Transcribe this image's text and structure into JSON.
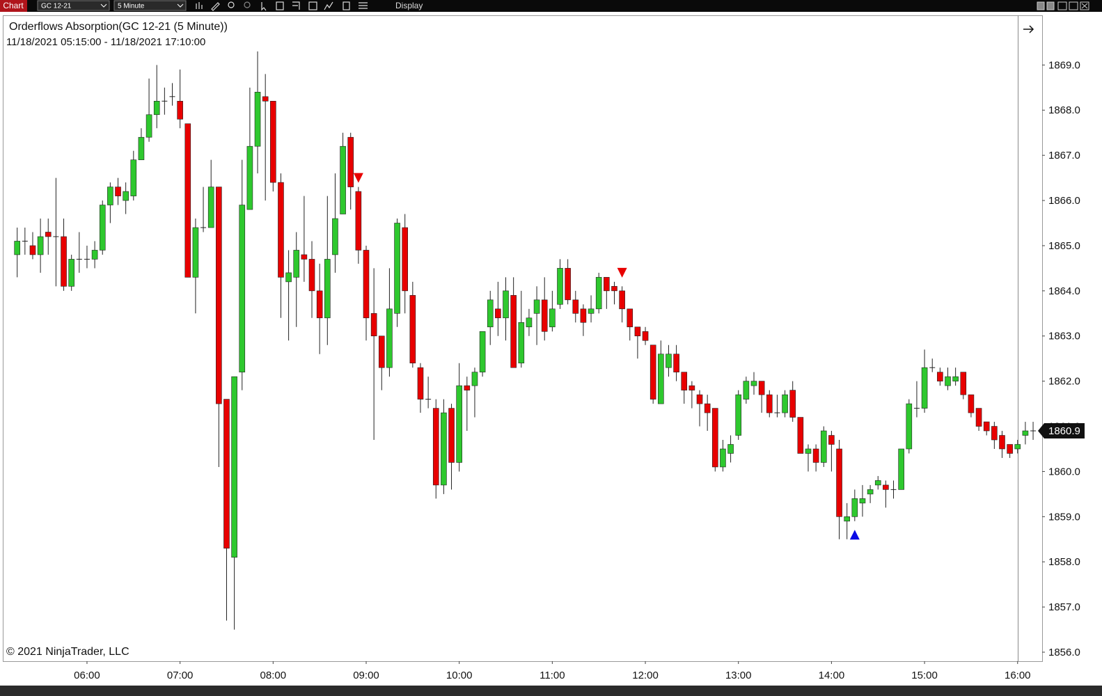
{
  "toolbar": {
    "tab": "Chart",
    "instrument": "GC 12-21",
    "interval": "5 Minute",
    "menu": "Display"
  },
  "chart_data": {
    "type": "candlestick",
    "title": "Orderflows Absorption(GC 12-21 (5 Minute))",
    "subtitle": "11/18/2021 05:15:00 - 11/18/2021 17:10:00",
    "copyright": "© 2021 NinjaTrader, LLC",
    "categories": [
      null,
      null,
      null,
      null,
      null,
      null,
      null,
      null,
      null,
      "06:00",
      null,
      null,
      null,
      null,
      null,
      null,
      null,
      null,
      null,
      null,
      null,
      "07:00",
      null,
      null,
      null,
      null,
      null,
      null,
      null,
      null,
      null,
      null,
      null,
      "08:00",
      null,
      null,
      null,
      null,
      null,
      null,
      null,
      null,
      null,
      null,
      null,
      "09:00",
      null,
      null,
      null,
      null,
      null,
      null,
      null,
      null,
      null,
      null,
      null,
      "10:00",
      null,
      null,
      null,
      null,
      null,
      null,
      null,
      null,
      null,
      null,
      null,
      "11:00",
      null,
      null,
      null,
      null,
      null,
      null,
      null,
      null,
      null,
      null,
      null,
      "12:00",
      null,
      null,
      null,
      null,
      null,
      null,
      null,
      null,
      null,
      null,
      null,
      "13:00",
      null,
      null,
      null,
      null,
      null,
      null,
      null,
      null,
      null,
      null,
      null,
      "14:00",
      null,
      null,
      null,
      null,
      null,
      null,
      null,
      null,
      null,
      null,
      null,
      "15:00",
      null,
      null,
      null,
      null,
      null,
      null,
      null,
      null,
      null,
      null,
      null,
      "16:00",
      null,
      null
    ],
    "open": [
      1864.8,
      1865.1,
      1865.0,
      1864.8,
      1865.3,
      1865.2,
      1865.2,
      1864.1,
      1864.7,
      1864.7,
      1864.7,
      1864.9,
      1865.9,
      1866.3,
      1866.0,
      1866.1,
      1866.9,
      1867.4,
      1867.9,
      1868.2,
      1868.3,
      1868.2,
      1867.7,
      1864.3,
      1865.4,
      1865.4,
      1866.3,
      1861.6,
      1858.1,
      1862.2,
      1865.8,
      1867.2,
      1868.3,
      1868.2,
      1866.4,
      1864.2,
      1864.3,
      1864.8,
      1864.7,
      1864.0,
      1863.4,
      1864.8,
      1865.7,
      1867.4,
      1866.2,
      1864.9,
      1863.5,
      1863.0,
      1862.3,
      1863.5,
      1865.4,
      1863.9,
      1862.3,
      1861.6,
      1861.4,
      1859.7,
      1861.4,
      1860.2,
      1861.9,
      1861.9,
      1862.2,
      1863.2,
      1863.6,
      1863.4,
      1863.9,
      1862.4,
      1863.2,
      1863.5,
      1863.8,
      1863.2,
      1863.7,
      1864.5,
      1863.8,
      1863.6,
      1863.5,
      1863.6,
      1864.3,
      1864.1,
      1864.0,
      1863.6,
      1863.2,
      1863.1,
      1862.8,
      1861.5,
      1862.3,
      1862.6,
      1862.2,
      1861.9,
      1861.7,
      1861.5,
      1861.4,
      1860.1,
      1860.4,
      1860.8,
      1861.6,
      1861.9,
      1862.0,
      1861.7,
      1861.3,
      1861.3,
      1861.8,
      1861.2,
      1860.4,
      1860.5,
      1860.2,
      1860.8,
      1860.5,
      1858.9,
      1859.0,
      1859.3,
      1859.5,
      1859.7,
      1859.7,
      1859.6,
      1859.6,
      1860.5,
      1861.4,
      1861.4,
      1862.3,
      1862.2,
      1861.9,
      1862.0,
      1862.2,
      1861.7,
      1861.4,
      1861.1,
      1861.0,
      1860.8,
      1860.6,
      1860.5,
      1860.8,
      1860.9
    ],
    "high": [
      1865.4,
      1865.4,
      1865.3,
      1865.6,
      1865.6,
      1866.5,
      1865.6,
      1864.8,
      1865.3,
      1865.0,
      1865.1,
      1866.0,
      1866.4,
      1866.5,
      1866.4,
      1867.1,
      1867.6,
      1868.7,
      1869.0,
      1868.5,
      1868.6,
      1868.9,
      1867.7,
      1865.6,
      1866.3,
      1866.9,
      1866.3,
      1861.6,
      1862.1,
      1866.9,
      1868.5,
      1869.3,
      1868.8,
      1868.2,
      1866.6,
      1864.9,
      1865.3,
      1866.1,
      1865.1,
      1864.6,
      1866.1,
      1866.6,
      1867.5,
      1867.5,
      1866.3,
      1865.0,
      1864.5,
      1863.0,
      1864.5,
      1865.6,
      1865.7,
      1864.2,
      1862.4,
      1862.1,
      1861.6,
      1861.6,
      1861.5,
      1862.4,
      1862.1,
      1862.3,
      1863.1,
      1864.0,
      1864.2,
      1864.3,
      1864.3,
      1864.0,
      1863.6,
      1864.1,
      1864.3,
      1864.0,
      1864.7,
      1864.7,
      1864.0,
      1863.7,
      1863.9,
      1864.4,
      1864.3,
      1864.2,
      1864.1,
      1863.6,
      1863.2,
      1863.2,
      1862.8,
      1862.9,
      1862.8,
      1862.8,
      1862.2,
      1862.0,
      1861.8,
      1861.7,
      1861.4,
      1860.7,
      1860.8,
      1861.8,
      1862.1,
      1862.2,
      1862.0,
      1861.8,
      1861.7,
      1861.8,
      1862.0,
      1861.2,
      1860.6,
      1860.6,
      1861.0,
      1860.9,
      1860.7,
      1859.3,
      1859.6,
      1859.7,
      1859.7,
      1859.9,
      1859.8,
      1859.8,
      1860.5,
      1861.6,
      1862.0,
      1862.7,
      1862.5,
      1862.3,
      1862.3,
      1862.3,
      1862.2,
      1861.7,
      1861.4,
      1861.1,
      1861.1,
      1860.9,
      1860.6,
      1860.7,
      1861.1,
      1861.1
    ],
    "low": [
      1864.3,
      1864.8,
      1864.7,
      1864.4,
      1864.8,
      1864.1,
      1864.0,
      1864.0,
      1864.4,
      1864.5,
      1864.5,
      1864.8,
      1865.5,
      1865.9,
      1865.7,
      1866.0,
      1866.9,
      1867.3,
      1867.6,
      1867.9,
      1868.1,
      1867.6,
      1864.3,
      1863.5,
      1865.3,
      1865.4,
      1860.1,
      1856.7,
      1856.5,
      1861.8,
      1865.8,
      1866.6,
      1866.0,
      1866.2,
      1863.4,
      1862.9,
      1863.2,
      1864.2,
      1863.4,
      1862.6,
      1862.8,
      1864.4,
      1865.7,
      1865.8,
      1864.6,
      1862.9,
      1860.7,
      1861.8,
      1862.1,
      1863.2,
      1863.5,
      1862.3,
      1861.3,
      1861.4,
      1859.4,
      1859.5,
      1859.6,
      1860.0,
      1860.9,
      1861.2,
      1862.1,
      1862.8,
      1863.0,
      1862.9,
      1862.3,
      1862.3,
      1863.0,
      1862.8,
      1862.9,
      1863.1,
      1863.6,
      1863.7,
      1863.3,
      1863.0,
      1863.3,
      1863.5,
      1863.6,
      1863.7,
      1863.3,
      1862.9,
      1862.5,
      1862.8,
      1861.5,
      1861.5,
      1862.1,
      1862.0,
      1861.5,
      1861.4,
      1861.0,
      1860.9,
      1860.0,
      1860.0,
      1860.2,
      1860.7,
      1861.5,
      1861.7,
      1861.3,
      1861.2,
      1861.2,
      1861.2,
      1861.1,
      1860.4,
      1860.0,
      1860.0,
      1860.1,
      1860.0,
      1858.5,
      1858.5,
      1858.9,
      1859.0,
      1859.3,
      1859.6,
      1859.2,
      1859.4,
      1859.6,
      1860.4,
      1861.2,
      1861.3,
      1862.2,
      1861.9,
      1861.8,
      1861.9,
      1861.6,
      1861.2,
      1860.9,
      1860.8,
      1860.5,
      1860.3,
      1860.3,
      1860.4,
      1860.6,
      1860.7
    ],
    "close": [
      1865.1,
      1865.1,
      1864.8,
      1865.2,
      1865.2,
      1865.2,
      1864.1,
      1864.7,
      1864.7,
      1864.7,
      1864.9,
      1865.9,
      1866.3,
      1866.1,
      1866.2,
      1866.9,
      1867.4,
      1867.9,
      1868.2,
      1868.2,
      1868.3,
      1867.8,
      1864.3,
      1865.4,
      1865.4,
      1866.3,
      1861.5,
      1858.3,
      1862.1,
      1865.9,
      1867.2,
      1868.4,
      1868.2,
      1866.4,
      1864.3,
      1864.4,
      1864.9,
      1864.7,
      1864.0,
      1863.4,
      1864.7,
      1865.6,
      1867.2,
      1866.3,
      1864.9,
      1863.4,
      1863.0,
      1862.3,
      1863.6,
      1865.5,
      1864.0,
      1862.4,
      1861.6,
      1861.6,
      1859.7,
      1861.3,
      1860.2,
      1861.9,
      1861.8,
      1862.2,
      1863.1,
      1863.8,
      1863.4,
      1864.0,
      1862.3,
      1863.3,
      1863.4,
      1863.8,
      1863.1,
      1863.6,
      1864.5,
      1863.8,
      1863.5,
      1863.3,
      1863.6,
      1864.3,
      1864.0,
      1864.0,
      1863.6,
      1863.2,
      1863.0,
      1862.9,
      1861.6,
      1862.6,
      1862.6,
      1862.2,
      1861.8,
      1861.8,
      1861.5,
      1861.3,
      1860.1,
      1860.5,
      1860.6,
      1861.7,
      1862.0,
      1862.0,
      1861.7,
      1861.3,
      1861.3,
      1861.7,
      1861.2,
      1860.4,
      1860.5,
      1860.2,
      1860.9,
      1860.6,
      1859.0,
      1859.0,
      1859.4,
      1859.4,
      1859.6,
      1859.8,
      1859.6,
      1859.6,
      1860.5,
      1861.5,
      1861.4,
      1862.3,
      1862.3,
      1862.0,
      1862.1,
      1862.1,
      1861.7,
      1861.3,
      1861.0,
      1860.9,
      1860.7,
      1860.5,
      1860.4,
      1860.6,
      1860.9,
      1860.9
    ],
    "sell_signals": [
      null,
      null,
      null,
      null,
      null,
      null,
      null,
      null,
      null,
      null,
      null,
      null,
      null,
      null,
      null,
      null,
      null,
      null,
      null,
      null,
      null,
      null,
      null,
      null,
      null,
      null,
      null,
      null,
      null,
      null,
      null,
      null,
      null,
      null,
      null,
      null,
      null,
      null,
      null,
      null,
      null,
      null,
      null,
      null,
      1866.5,
      null,
      null,
      null,
      null,
      null,
      null,
      null,
      null,
      null,
      null,
      null,
      null,
      null,
      null,
      null,
      null,
      null,
      null,
      null,
      null,
      null,
      null,
      null,
      null,
      null,
      null,
      null,
      null,
      null,
      null,
      null,
      null,
      null,
      1864.4,
      null,
      null,
      null,
      null,
      null,
      null,
      null,
      null,
      null,
      null,
      null,
      null,
      null,
      null,
      null,
      null,
      null,
      null,
      null,
      null,
      null,
      null,
      null,
      null,
      null,
      null,
      null,
      null,
      null,
      null,
      null,
      null,
      null,
      null,
      null,
      null,
      null,
      null,
      null,
      null,
      null,
      null,
      null,
      null,
      null,
      null,
      null,
      null,
      null,
      null,
      null,
      null,
      null
    ],
    "buy_signals": [
      null,
      null,
      null,
      null,
      null,
      null,
      null,
      null,
      null,
      null,
      null,
      null,
      null,
      null,
      null,
      null,
      null,
      null,
      null,
      null,
      null,
      null,
      null,
      null,
      null,
      null,
      null,
      null,
      null,
      null,
      null,
      null,
      null,
      null,
      null,
      null,
      null,
      null,
      null,
      null,
      null,
      null,
      null,
      null,
      null,
      null,
      null,
      null,
      null,
      null,
      null,
      null,
      null,
      null,
      null,
      null,
      null,
      null,
      null,
      null,
      null,
      null,
      null,
      null,
      null,
      null,
      null,
      null,
      null,
      null,
      null,
      null,
      null,
      null,
      null,
      null,
      null,
      null,
      null,
      null,
      null,
      null,
      null,
      null,
      null,
      null,
      null,
      null,
      null,
      null,
      null,
      null,
      null,
      null,
      null,
      null,
      null,
      null,
      null,
      null,
      null,
      null,
      null,
      null,
      null,
      null,
      null,
      null,
      1858.6,
      null,
      null,
      null,
      null,
      null,
      null,
      null,
      null,
      null,
      null,
      null,
      null,
      null,
      null,
      null,
      null,
      null,
      null,
      null,
      null,
      null,
      null,
      null
    ],
    "up_color": "#2ec82e",
    "down_color": "#e80000",
    "sell_color": "#e80000",
    "buy_color": "#0a0ae6",
    "ylim": [
      1855.8,
      1870.1
    ],
    "yticks": [
      {
        "value": 1856,
        "label": "1856.0"
      },
      {
        "value": 1857,
        "label": "1857.0"
      },
      {
        "value": 1858,
        "label": "1858.0"
      },
      {
        "value": 1859,
        "label": "1859.0"
      },
      {
        "value": 1860,
        "label": "1860.0"
      },
      {
        "value": 1861,
        "label": "1861.0"
      },
      {
        "value": 1862,
        "label": "1862.0"
      },
      {
        "value": 1863,
        "label": "1863.0"
      },
      {
        "value": 1864,
        "label": "1864.0"
      },
      {
        "value": 1865,
        "label": "1865.0"
      },
      {
        "value": 1866,
        "label": "1866.0"
      },
      {
        "value": 1867,
        "label": "1867.0"
      },
      {
        "value": 1868,
        "label": "1868.0"
      },
      {
        "value": 1869,
        "label": "1869.0"
      }
    ]
  }
}
